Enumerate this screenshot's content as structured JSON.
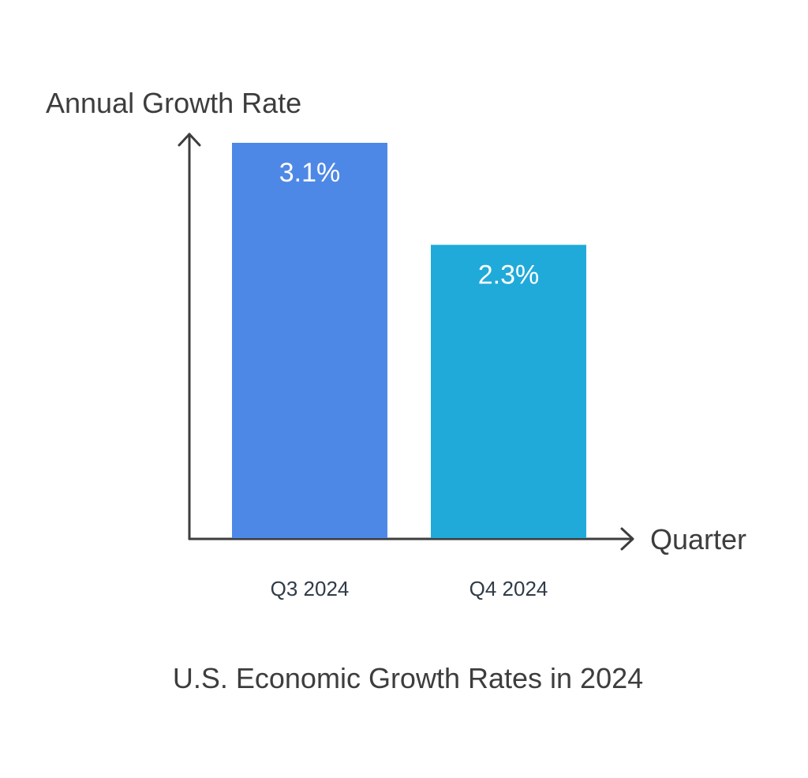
{
  "chart_data": {
    "type": "bar",
    "title": "U.S. Economic Growth Rates in 2024",
    "xlabel": "Quarter",
    "ylabel": "Annual Growth Rate",
    "categories": [
      "Q3 2024",
      "Q4 2024"
    ],
    "values": [
      3.1,
      2.3
    ],
    "value_labels": [
      "3.1%",
      "2.3%"
    ],
    "ylim": [
      0,
      3.1
    ],
    "grid": false,
    "legend": "none",
    "colors": [
      "#4e88e6",
      "#20aad9"
    ]
  },
  "colors": {
    "axis": "#3d3d3d",
    "label_text": "#3d3d3d",
    "tick_text": "#2f3b48",
    "value_text": "#ffffff",
    "background": "#ffffff"
  }
}
